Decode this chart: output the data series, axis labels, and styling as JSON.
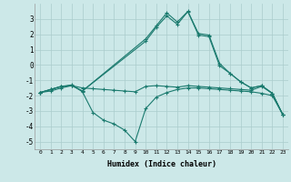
{
  "line1": {
    "x": [
      0,
      1,
      2,
      3,
      4,
      5,
      6,
      7,
      8,
      9,
      10,
      11,
      12,
      13,
      14,
      15,
      16,
      17,
      18,
      19,
      20,
      21,
      22,
      23
    ],
    "y": [
      -1.8,
      -1.7,
      -1.5,
      -1.35,
      -1.5,
      -1.55,
      -1.6,
      -1.65,
      -1.7,
      -1.75,
      -1.4,
      -1.35,
      -1.4,
      -1.45,
      -1.35,
      -1.4,
      -1.45,
      -1.5,
      -1.55,
      -1.6,
      -1.65,
      -1.4,
      -1.85,
      -3.25
    ]
  },
  "line2": {
    "x": [
      0,
      1,
      2,
      3,
      4,
      5,
      6,
      7,
      8,
      9,
      10,
      11,
      12,
      13,
      14,
      15,
      16,
      17,
      18,
      19,
      20,
      21,
      22,
      23
    ],
    "y": [
      -1.8,
      -1.6,
      -1.4,
      -1.3,
      -1.75,
      -3.1,
      -3.6,
      -3.85,
      -4.25,
      -5.0,
      -2.85,
      -2.1,
      -1.8,
      -1.6,
      -1.5,
      -1.5,
      -1.55,
      -1.6,
      -1.65,
      -1.7,
      -1.75,
      -1.85,
      -2.0,
      -3.25
    ]
  },
  "line3": {
    "x": [
      0,
      1,
      2,
      3,
      4,
      10,
      11,
      12,
      13,
      14,
      15,
      16,
      17,
      18,
      19,
      20,
      21,
      22,
      23
    ],
    "y": [
      -1.8,
      -1.6,
      -1.4,
      -1.35,
      -1.7,
      1.7,
      2.55,
      3.4,
      2.8,
      3.5,
      2.05,
      1.95,
      0.1,
      -0.55,
      -1.1,
      -1.5,
      -1.35,
      -1.85,
      -3.25
    ]
  },
  "line4": {
    "x": [
      0,
      1,
      2,
      3,
      4,
      10,
      11,
      12,
      13,
      14,
      15,
      16,
      17,
      18,
      19,
      20,
      21,
      22,
      23
    ],
    "y": [
      -1.8,
      -1.6,
      -1.4,
      -1.35,
      -1.7,
      1.55,
      2.45,
      3.2,
      2.65,
      3.48,
      1.95,
      1.85,
      -0.05,
      -0.55,
      -1.1,
      -1.5,
      -1.35,
      -1.85,
      -3.25
    ]
  },
  "line_color": "#1a7a6e",
  "bg_color": "#cce8e8",
  "grid_color": "#aacccc",
  "xlabel": "Humidex (Indice chaleur)",
  "ylim": [
    -5.5,
    4.0
  ],
  "xlim": [
    -0.5,
    23.5
  ],
  "yticks": [
    3,
    2,
    1,
    0,
    -1,
    -2,
    -3,
    -4,
    -5
  ],
  "xticks": [
    0,
    1,
    2,
    3,
    4,
    5,
    6,
    7,
    8,
    9,
    10,
    11,
    12,
    13,
    14,
    15,
    16,
    17,
    18,
    19,
    20,
    21,
    22,
    23
  ]
}
